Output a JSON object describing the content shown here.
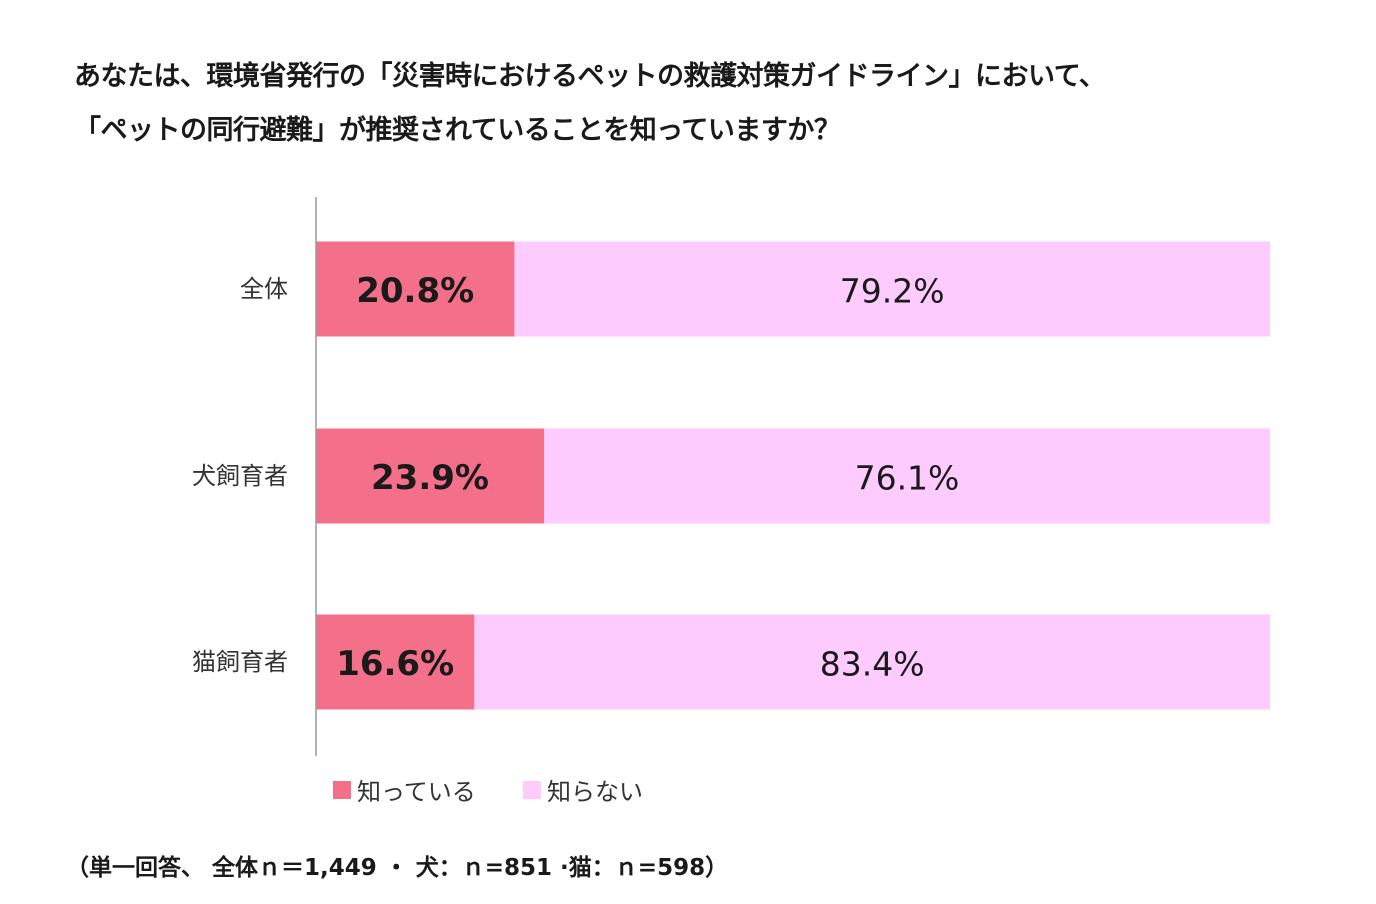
{
  "title": {
    "line1": "あなたは、環境省発行の「災害時におけるペットの救護対策ガイドライン」において、",
    "line2": "「ペットの同行避難」が推奨されていることを知っていますか？"
  },
  "colors": {
    "known": "#f4708a",
    "unknown": "#fdcbfd",
    "axis": "#999999"
  },
  "chart_data": {
    "type": "bar",
    "orientation": "horizontal",
    "stacked": true,
    "categories": [
      "全体",
      "犬飼育者",
      "猫飼育者"
    ],
    "series": [
      {
        "name": "知っている",
        "values": [
          20.8,
          23.9,
          16.6
        ],
        "labels": [
          "20.8%",
          "23.9%",
          "16.6%"
        ]
      },
      {
        "name": "知らない",
        "values": [
          79.2,
          76.1,
          83.4
        ],
        "labels": [
          "79.2%",
          "76.1%",
          "83.4%"
        ]
      }
    ],
    "xlim": [
      0,
      100
    ],
    "grid": false,
    "legend": "bottom"
  },
  "footnote": "（単一回答、 全体ｎ＝1,449 ・ 犬：ｎ=851 ·猫：ｎ=598）"
}
